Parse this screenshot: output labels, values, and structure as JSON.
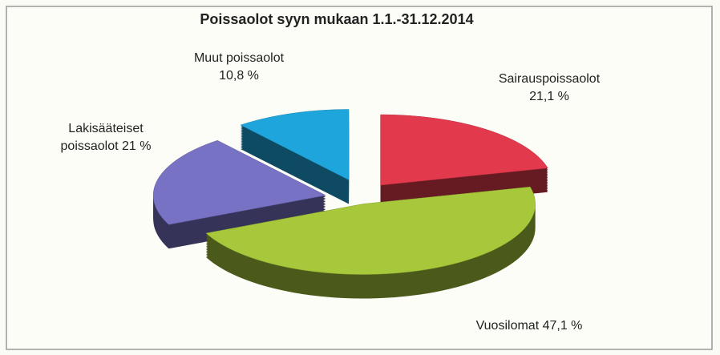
{
  "chart_data": {
    "type": "pie",
    "title": "Poissaolot syyn mukaan 1.1.-31.12.2014",
    "categories": [
      "Sairauspoissaolot",
      "Vuosilomat",
      "Lakisääteiset poissaolot",
      "Muut poissaolot"
    ],
    "values": [
      21.1,
      47.1,
      21,
      10.8
    ],
    "value_labels": [
      "21,1 %",
      "47,1 %",
      "21 %",
      "10,8 %"
    ],
    "colors": [
      "#e23a4c",
      "#a6c83a",
      "#7772c4",
      "#1ea6dc"
    ]
  }
}
